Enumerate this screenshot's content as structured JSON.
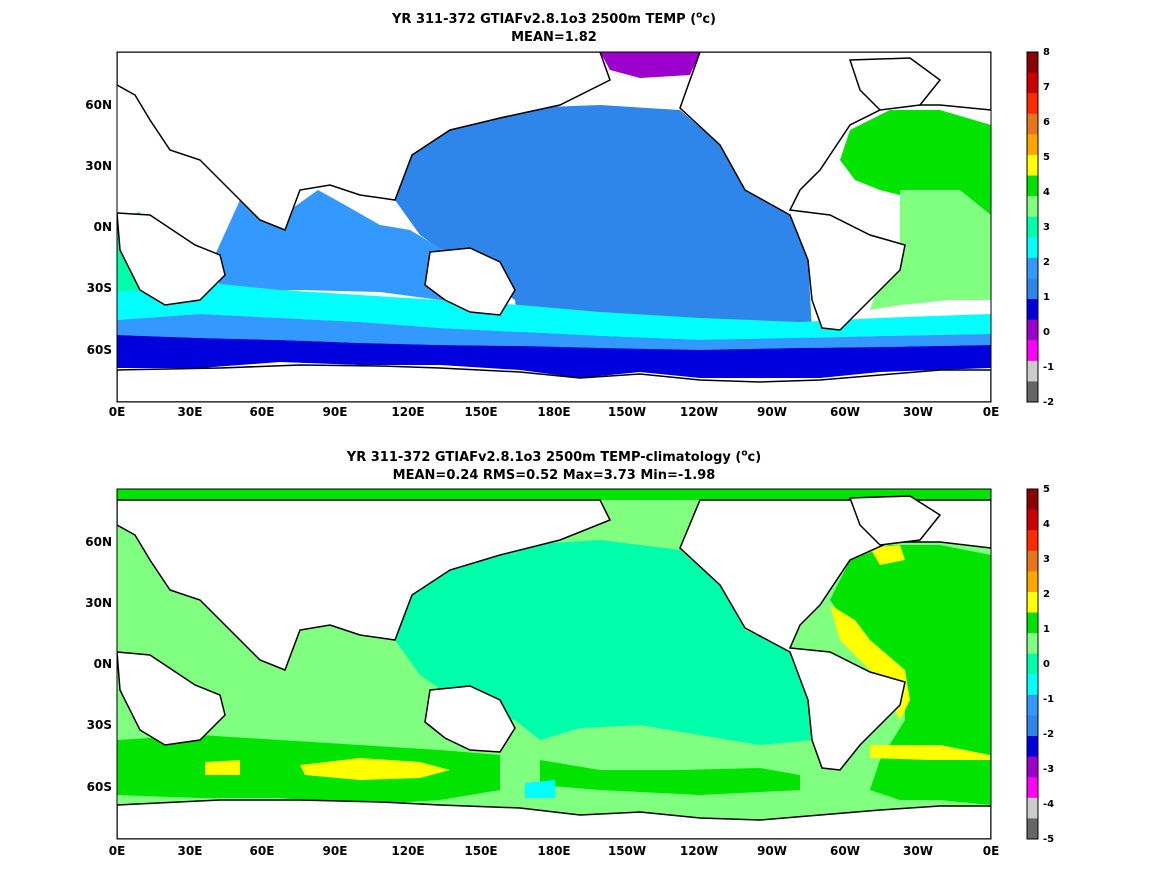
{
  "figure": {
    "panels": [
      {
        "title_line1_text": "YR 311-372 GTIAFv2.8.1o3 2500m TEMP (",
        "title_unit_sup": "o",
        "title_unit_rest": "c)",
        "title_line2": "MEAN=1.82",
        "colorbar": {
          "ticks": [
            "8",
            "7",
            "6",
            "5",
            "4",
            "3",
            "2",
            "1",
            "0",
            "-1",
            "-2"
          ],
          "colors": [
            "#8b0000",
            "#cc0000",
            "#ff2a00",
            "#e8741c",
            "#ffa500",
            "#ffff00",
            "#00e400",
            "#80ff80",
            "#00ffaa",
            "#00ffff",
            "#3399ff",
            "#2e86ea",
            "#0000dd",
            "#9b00cc",
            "#ff00ff",
            "#cccccc",
            "#666666"
          ]
        }
      },
      {
        "title_line1_text": "YR 311-372 GTIAFv2.8.1o3 2500m TEMP-climatology (",
        "title_unit_sup": "o",
        "title_unit_rest": "c)",
        "title_line2": "MEAN=0.24   RMS=0.52   Max=3.73   Min=-1.98",
        "colorbar": {
          "ticks": [
            "5",
            "4",
            "3",
            "2",
            "1",
            "0",
            "-1",
            "-2",
            "-3",
            "-4",
            "-5"
          ],
          "colors": [
            "#8b0000",
            "#cc0000",
            "#ff2a00",
            "#e8741c",
            "#ffa500",
            "#ffff00",
            "#00e400",
            "#80ff80",
            "#00ffaa",
            "#00ffff",
            "#3399ff",
            "#2e86ea",
            "#0000dd",
            "#9b00cc",
            "#ff00ff",
            "#cccccc",
            "#666666"
          ]
        }
      }
    ],
    "x_ticks": [
      "0E",
      "30E",
      "60E",
      "90E",
      "120E",
      "150E",
      "180E",
      "150W",
      "120W",
      "90W",
      "60W",
      "30W",
      "0E"
    ],
    "y_ticks": [
      "60N",
      "30N",
      "0N",
      "30S",
      "60S"
    ],
    "land_color": "#ffffff",
    "coast_color": "#000000"
  }
}
